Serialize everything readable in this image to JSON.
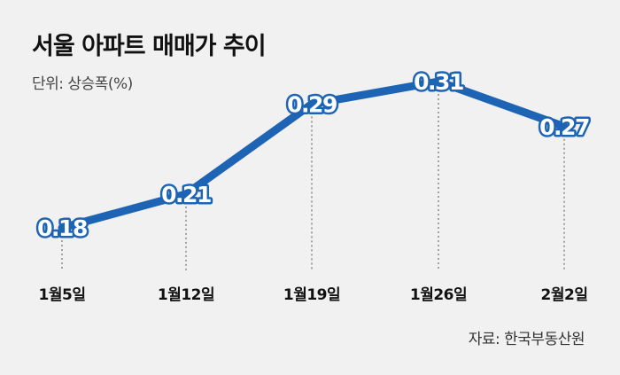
{
  "chart_data": {
    "type": "line",
    "title": "서울 아파트 매매가 추이",
    "unit_label": "단위: 상승폭(%)",
    "source": "자료: 한국부동산원",
    "categories": [
      "1월5일",
      "1월12일",
      "1월19일",
      "1월26일",
      "2월2일"
    ],
    "values": [
      0.18,
      0.21,
      0.29,
      0.31,
      0.27
    ],
    "data_labels": [
      "0.18",
      "0.21",
      "0.29",
      "0.31",
      "0.27"
    ],
    "line_color": "#1e64b4",
    "grid": false
  }
}
